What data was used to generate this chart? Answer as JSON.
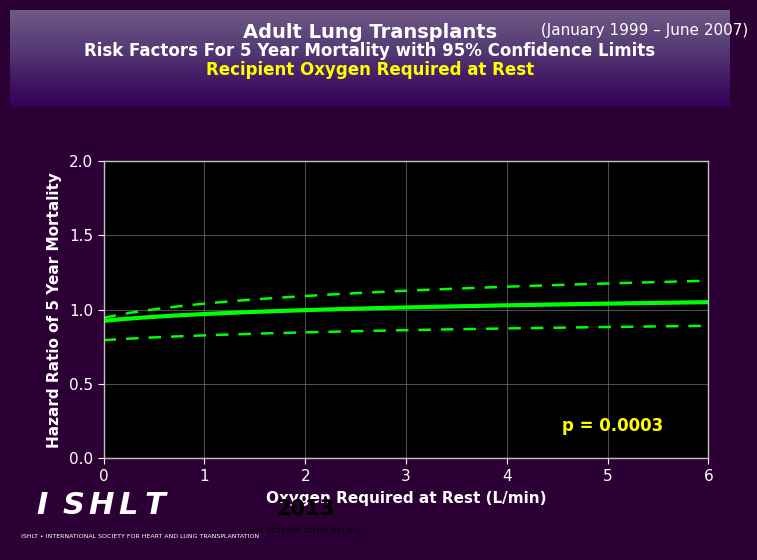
{
  "title_line1_bold": "Adult Lung Transplants",
  "title_line1_normal": " (January 1999 – June 2007)",
  "title_line2": "Risk Factors For 5 Year Mortality with 95% Confidence Limits",
  "title_line3": "Recipient Oxygen Required at Rest",
  "xlabel": "Oxygen Required at Rest (L/min)",
  "ylabel": "Hazard Ratio of 5 Year Mortality",
  "p_value_text": "p = 0.0003",
  "xlim": [
    0,
    6
  ],
  "ylim": [
    0.0,
    2.0
  ],
  "yticks": [
    0.0,
    0.5,
    1.0,
    1.5,
    2.0
  ],
  "xticks": [
    0,
    1,
    2,
    3,
    4,
    5,
    6
  ],
  "bg_color": "#2d0035",
  "plot_bg_color": "#000000",
  "line_color": "#00ff00",
  "ci_color": "#00ff00",
  "grid_color": "#808080",
  "axis_color": "#c0c0c0",
  "tick_color": "#ffffff",
  "p_value_color": "#ffff00",
  "title1_color": "#ffffff",
  "title3_color": "#ffff00",
  "journal_text": "JHLT. 2013 Oct; 32(10): 965-978",
  "hr_a": 0.925,
  "hr_b": 0.062,
  "hr_c": 1.1,
  "ci_upper_a": 0.945,
  "ci_upper_b": 0.115,
  "ci_upper_c": 1.3,
  "ci_lower_a": 0.795,
  "ci_lower_b": 0.055,
  "ci_lower_c": 0.8
}
